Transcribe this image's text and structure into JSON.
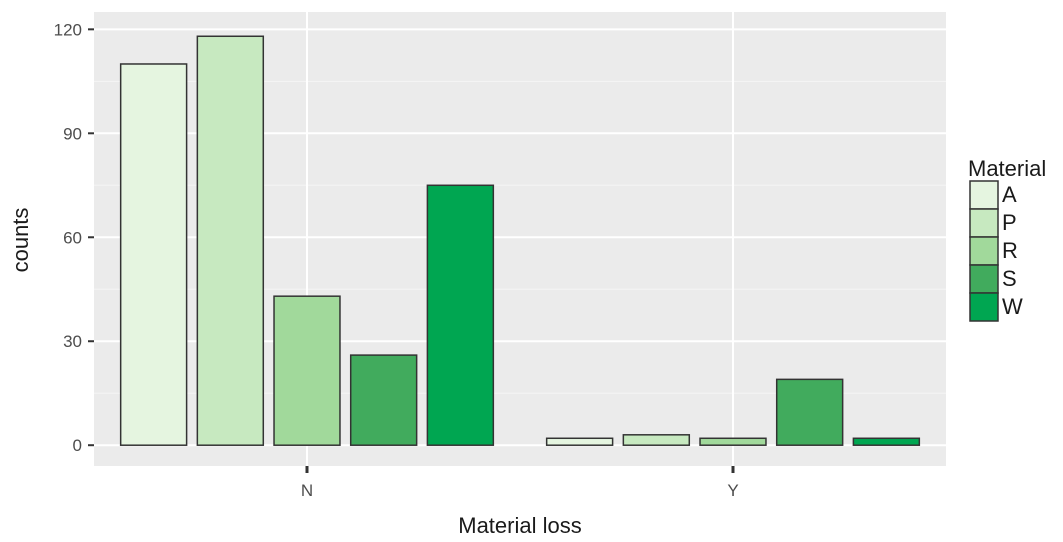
{
  "chart_data": {
    "type": "bar",
    "categories": [
      "N",
      "Y"
    ],
    "series": [
      {
        "name": "A",
        "values": [
          110,
          2
        ],
        "color": "#e5f5e0"
      },
      {
        "name": "P",
        "values": [
          118,
          3
        ],
        "color": "#c7e9c0"
      },
      {
        "name": "R",
        "values": [
          43,
          2
        ],
        "color": "#a1d99b"
      },
      {
        "name": "S",
        "values": [
          26,
          19
        ],
        "color": "#41ab5d"
      },
      {
        "name": "W",
        "values": [
          75,
          2
        ],
        "color": "#00a651"
      }
    ],
    "xlabel": "Material loss",
    "ylabel": "counts",
    "ylim": [
      -6,
      125
    ],
    "yticks": [
      0,
      30,
      60,
      90,
      120
    ],
    "legend_title": "Material",
    "legend_position": "right",
    "grid": true,
    "background": "#ebebeb"
  }
}
